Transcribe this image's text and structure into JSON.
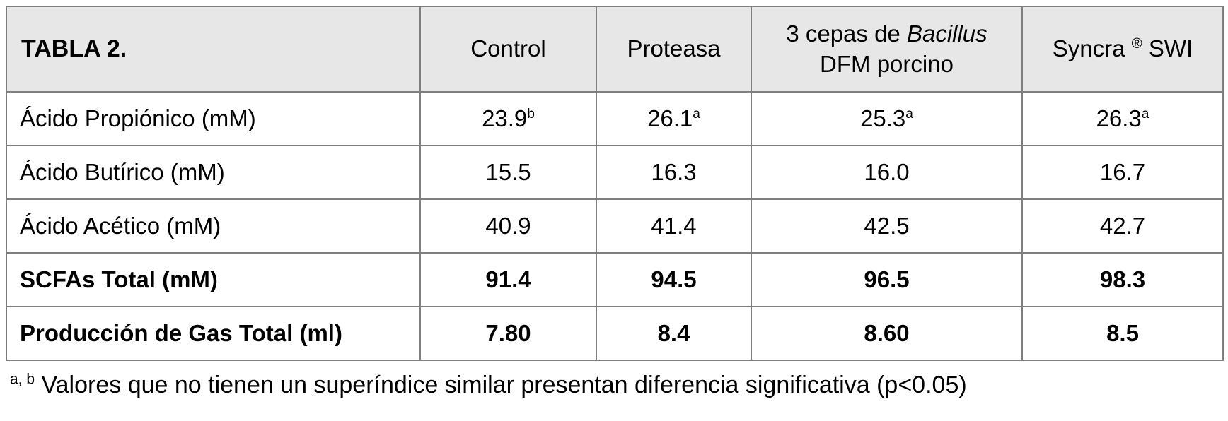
{
  "table": {
    "title": "TABLA 2.",
    "columns": [
      {
        "name": "control",
        "parts": [
          {
            "t": "Control"
          }
        ]
      },
      {
        "name": "proteasa",
        "parts": [
          {
            "t": "Proteasa"
          }
        ]
      },
      {
        "name": "bacillus-dfm",
        "parts": [
          {
            "t": "3 cepas de "
          },
          {
            "t": "Bacillus",
            "italic": true
          },
          {
            "br": true
          },
          {
            "t": "DFM porcino"
          }
        ]
      },
      {
        "name": "syncra-swi",
        "parts": [
          {
            "t": "Syncra "
          },
          {
            "t": "®",
            "sup": true
          },
          {
            "t": " SWI"
          }
        ]
      }
    ],
    "rows": [
      {
        "label": "Ácido Propiónico (mM)",
        "bold": false,
        "cells": [
          {
            "v": "23.9",
            "sup": "b"
          },
          {
            "v": "26.1",
            "sup": "a",
            "sup_underline": true
          },
          {
            "v": "25.3",
            "sup": "a"
          },
          {
            "v": "26.3",
            "sup": "a"
          }
        ]
      },
      {
        "label": "Ácido Butírico (mM)",
        "bold": false,
        "cells": [
          {
            "v": "15.5"
          },
          {
            "v": "16.3"
          },
          {
            "v": "16.0"
          },
          {
            "v": "16.7"
          }
        ]
      },
      {
        "label": "Ácido Acético (mM)",
        "bold": false,
        "cells": [
          {
            "v": "40.9"
          },
          {
            "v": "41.4"
          },
          {
            "v": "42.5"
          },
          {
            "v": "42.7"
          }
        ]
      },
      {
        "label": "SCFAs Total (mM)",
        "bold": true,
        "cells": [
          {
            "v": "91.4"
          },
          {
            "v": "94.5"
          },
          {
            "v": "96.5"
          },
          {
            "v": "98.3"
          }
        ]
      },
      {
        "label": "Producción de Gas Total (ml)",
        "bold": true,
        "cells": [
          {
            "v": "7.80"
          },
          {
            "v": "8.4"
          },
          {
            "v": "8.60"
          },
          {
            "v": "8.5"
          }
        ]
      }
    ]
  },
  "footnote": {
    "sup": "a, b",
    "text": "Valores que no tienen un superíndice similar presentan diferencia significativa (p<0.05)"
  },
  "colors": {
    "header_bg": "#e7e7e7",
    "border": "#7f7f7f",
    "text": "#000000",
    "page_bg": "#ffffff"
  }
}
